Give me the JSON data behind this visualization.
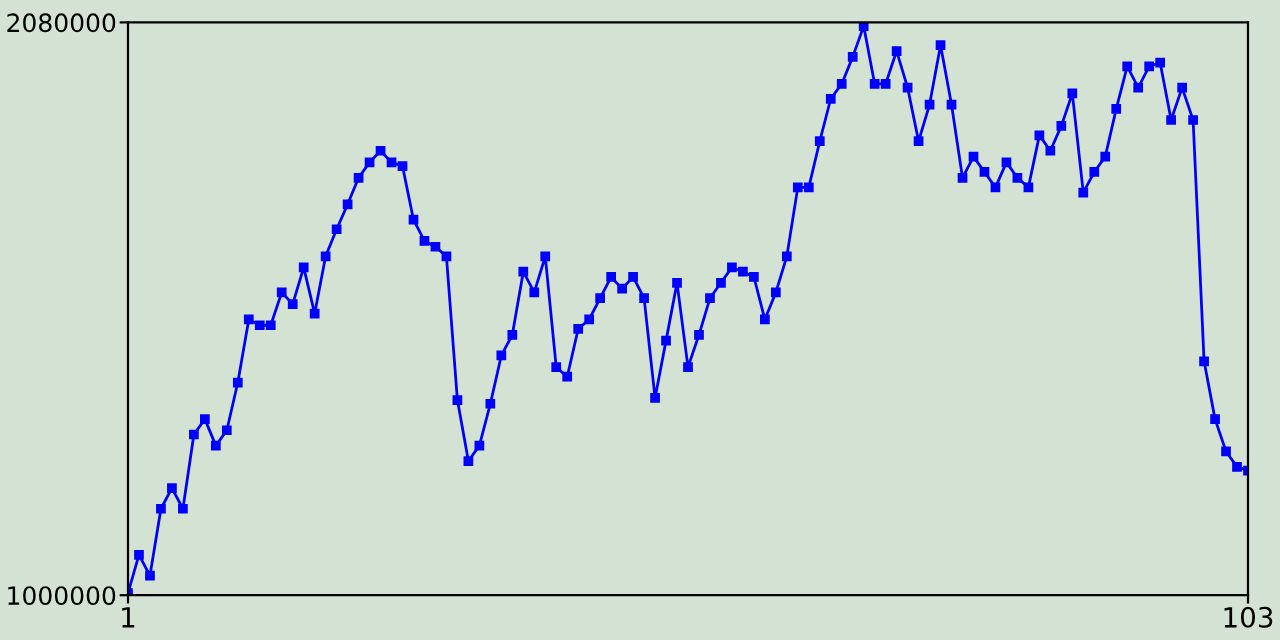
{
  "chart_data": {
    "type": "line",
    "x": [
      1,
      2,
      3,
      4,
      5,
      6,
      7,
      8,
      9,
      10,
      11,
      12,
      13,
      14,
      15,
      16,
      17,
      18,
      19,
      20,
      21,
      22,
      23,
      24,
      25,
      26,
      27,
      28,
      29,
      30,
      31,
      32,
      33,
      34,
      35,
      36,
      37,
      38,
      39,
      40,
      41,
      42,
      43,
      44,
      45,
      46,
      47,
      48,
      49,
      50,
      51,
      52,
      53,
      54,
      55,
      56,
      57,
      58,
      59,
      60,
      61,
      62,
      63,
      64,
      65,
      66,
      67,
      68,
      69,
      70,
      71,
      72,
      73,
      74,
      75,
      76,
      77,
      78,
      79,
      80,
      81,
      82,
      83,
      84,
      85,
      86,
      87,
      88,
      89,
      90,
      91,
      92,
      93,
      94,
      95,
      96,
      97,
      98,
      99,
      100,
      101,
      102,
      103
    ],
    "series": [
      {
        "color": "#0000ff",
        "values": [
          1004000,
          1076000,
          1037000,
          1163000,
          1202000,
          1163000,
          1303000,
          1332000,
          1282000,
          1311000,
          1401000,
          1520000,
          1509000,
          1509000,
          1571000,
          1549000,
          1618000,
          1531000,
          1639000,
          1690000,
          1737000,
          1787000,
          1816000,
          1838000,
          1816000,
          1809000,
          1708000,
          1668000,
          1657000,
          1639000,
          1368000,
          1253000,
          1282000,
          1361000,
          1452000,
          1491000,
          1610000,
          1571000,
          1639000,
          1430000,
          1412000,
          1502000,
          1520000,
          1560000,
          1600000,
          1578000,
          1600000,
          1560000,
          1372000,
          1480000,
          1589000,
          1430000,
          1491000,
          1560000,
          1589000,
          1618000,
          1610000,
          1600000,
          1520000,
          1571000,
          1639000,
          1769000,
          1769000,
          1856000,
          1936000,
          1964000,
          2015000,
          2073000,
          1964000,
          1964000,
          2026000,
          1957000,
          1856000,
          1925000,
          2037000,
          1925000,
          1787000,
          1827000,
          1798000,
          1769000,
          1816000,
          1787000,
          1769000,
          1867000,
          1838000,
          1885000,
          1946000,
          1759000,
          1798000,
          1827000,
          1917000,
          1997000,
          1957000,
          1997000,
          2004000,
          1896000,
          1957000,
          1896000,
          1441000,
          1332000,
          1271000,
          1242000,
          1235000
        ]
      }
    ],
    "xlim": [
      1,
      103
    ],
    "ylim": [
      1000000,
      2080000
    ],
    "xticks": [
      1,
      103
    ],
    "yticks": [
      1000000,
      2080000
    ],
    "marker": "square",
    "line_style": "solid",
    "grid": false,
    "legend": false
  }
}
